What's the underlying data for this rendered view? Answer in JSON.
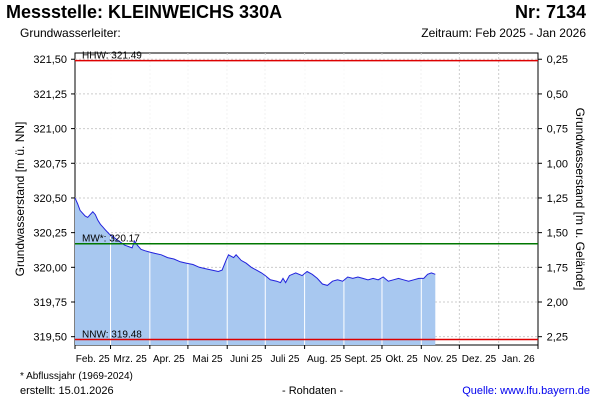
{
  "header": {
    "title": "Messstelle: KLEINWEICHS 330A",
    "number": "Nr: 7134",
    "aquifer": "Grundwasserleiter:",
    "period": "Zeitraum: Feb 2025 - Jan 2026"
  },
  "footer": {
    "footnote": "* Abflussjahr (1969-2024)",
    "created": "erstellt:  15.01.2026",
    "raw_data": "- Rohdaten -",
    "source": "Quelle: www.lfu.bayern.de"
  },
  "colors": {
    "area_fill": "#a8c8f0",
    "series_line": "#2222dd",
    "extreme_line": "#dd0000",
    "mean_line": "#007700",
    "grid": "#cccccc"
  },
  "chart_data": {
    "type": "area",
    "ylabel_left": "Grundwasserstand [m ü. NN]",
    "ylabel_right": "Grundwasserstand [m u. Gelände]",
    "ylim": [
      319.44,
      321.545
    ],
    "y_ticks_left": [
      "321,50",
      "321,25",
      "321,00",
      "320,75",
      "320,50",
      "320,25",
      "320,00",
      "319,75",
      "319,50"
    ],
    "y_ticks_right": [
      "0,25",
      "0,50",
      "0,75",
      "1,00",
      "1,25",
      "1,50",
      "1,75",
      "2,00",
      "2,25"
    ],
    "x_ticks": [
      "Feb. 25",
      "Mrz. 25",
      "Apr. 25",
      "Mai 25",
      "Juni 25",
      "Juli 25",
      "Aug. 25",
      "Sept. 25",
      "Okt. 25",
      "Nov. 25",
      "Dez. 25",
      "Jan. 26"
    ],
    "grid": true,
    "reference_lines": [
      {
        "label": "HHW: 321.49",
        "value": 321.49,
        "kind": "extreme"
      },
      {
        "label": "MW*: 320.17",
        "value": 320.17,
        "kind": "mean"
      },
      {
        "label": "NNW: 319.48",
        "value": 319.48,
        "kind": "extreme"
      }
    ],
    "series": [
      {
        "x": [
          "2025-02-01",
          "2025-02-03",
          "2025-02-05",
          "2025-02-07",
          "2025-02-09",
          "2025-02-11",
          "2025-02-13",
          "2025-02-15",
          "2025-02-17",
          "2025-02-19",
          "2025-02-21",
          "2025-02-23",
          "2025-02-25",
          "2025-02-28",
          "2025-03-03",
          "2025-03-06",
          "2025-03-09",
          "2025-03-12",
          "2025-03-15",
          "2025-03-18",
          "2025-03-20",
          "2025-03-22",
          "2025-03-25",
          "2025-03-28",
          "2025-04-01",
          "2025-04-05",
          "2025-04-10",
          "2025-04-15",
          "2025-04-20",
          "2025-04-25",
          "2025-04-30",
          "2025-05-05",
          "2025-05-10",
          "2025-05-15",
          "2025-05-20",
          "2025-05-25",
          "2025-05-28",
          "2025-05-31",
          "2025-06-02",
          "2025-06-04",
          "2025-06-06",
          "2025-06-08",
          "2025-06-12",
          "2025-06-16",
          "2025-06-20",
          "2025-06-24",
          "2025-06-28",
          "2025-07-01",
          "2025-07-05",
          "2025-07-10",
          "2025-07-13",
          "2025-07-15",
          "2025-07-17",
          "2025-07-20",
          "2025-07-25",
          "2025-07-30",
          "2025-08-03",
          "2025-08-07",
          "2025-08-11",
          "2025-08-15",
          "2025-08-19",
          "2025-08-23",
          "2025-08-27",
          "2025-08-31",
          "2025-09-04",
          "2025-09-08",
          "2025-09-12",
          "2025-09-16",
          "2025-09-20",
          "2025-09-24",
          "2025-09-28",
          "2025-10-02",
          "2025-10-06",
          "2025-10-10",
          "2025-10-14",
          "2025-10-18",
          "2025-10-22",
          "2025-10-26",
          "2025-10-30",
          "2025-11-03",
          "2025-11-06",
          "2025-11-09",
          "2025-11-12"
        ],
        "values": [
          320.5,
          320.46,
          320.41,
          320.39,
          320.37,
          320.36,
          320.38,
          320.4,
          320.38,
          320.34,
          320.31,
          320.29,
          320.27,
          320.24,
          320.22,
          320.2,
          320.18,
          320.16,
          320.15,
          320.14,
          320.19,
          320.16,
          320.13,
          320.12,
          320.11,
          320.1,
          320.09,
          320.07,
          320.06,
          320.04,
          320.03,
          320.02,
          320.0,
          319.99,
          319.98,
          319.97,
          319.98,
          320.05,
          320.09,
          320.08,
          320.07,
          320.09,
          320.05,
          320.03,
          320.0,
          319.98,
          319.96,
          319.94,
          319.91,
          319.9,
          319.89,
          319.92,
          319.89,
          319.94,
          319.96,
          319.94,
          319.97,
          319.95,
          319.92,
          319.88,
          319.87,
          319.9,
          319.91,
          319.9,
          319.93,
          319.92,
          319.93,
          319.92,
          319.91,
          319.92,
          319.91,
          319.93,
          319.9,
          319.91,
          319.92,
          319.91,
          319.9,
          319.91,
          319.92,
          319.92,
          319.95,
          319.96,
          319.95
        ]
      }
    ]
  }
}
